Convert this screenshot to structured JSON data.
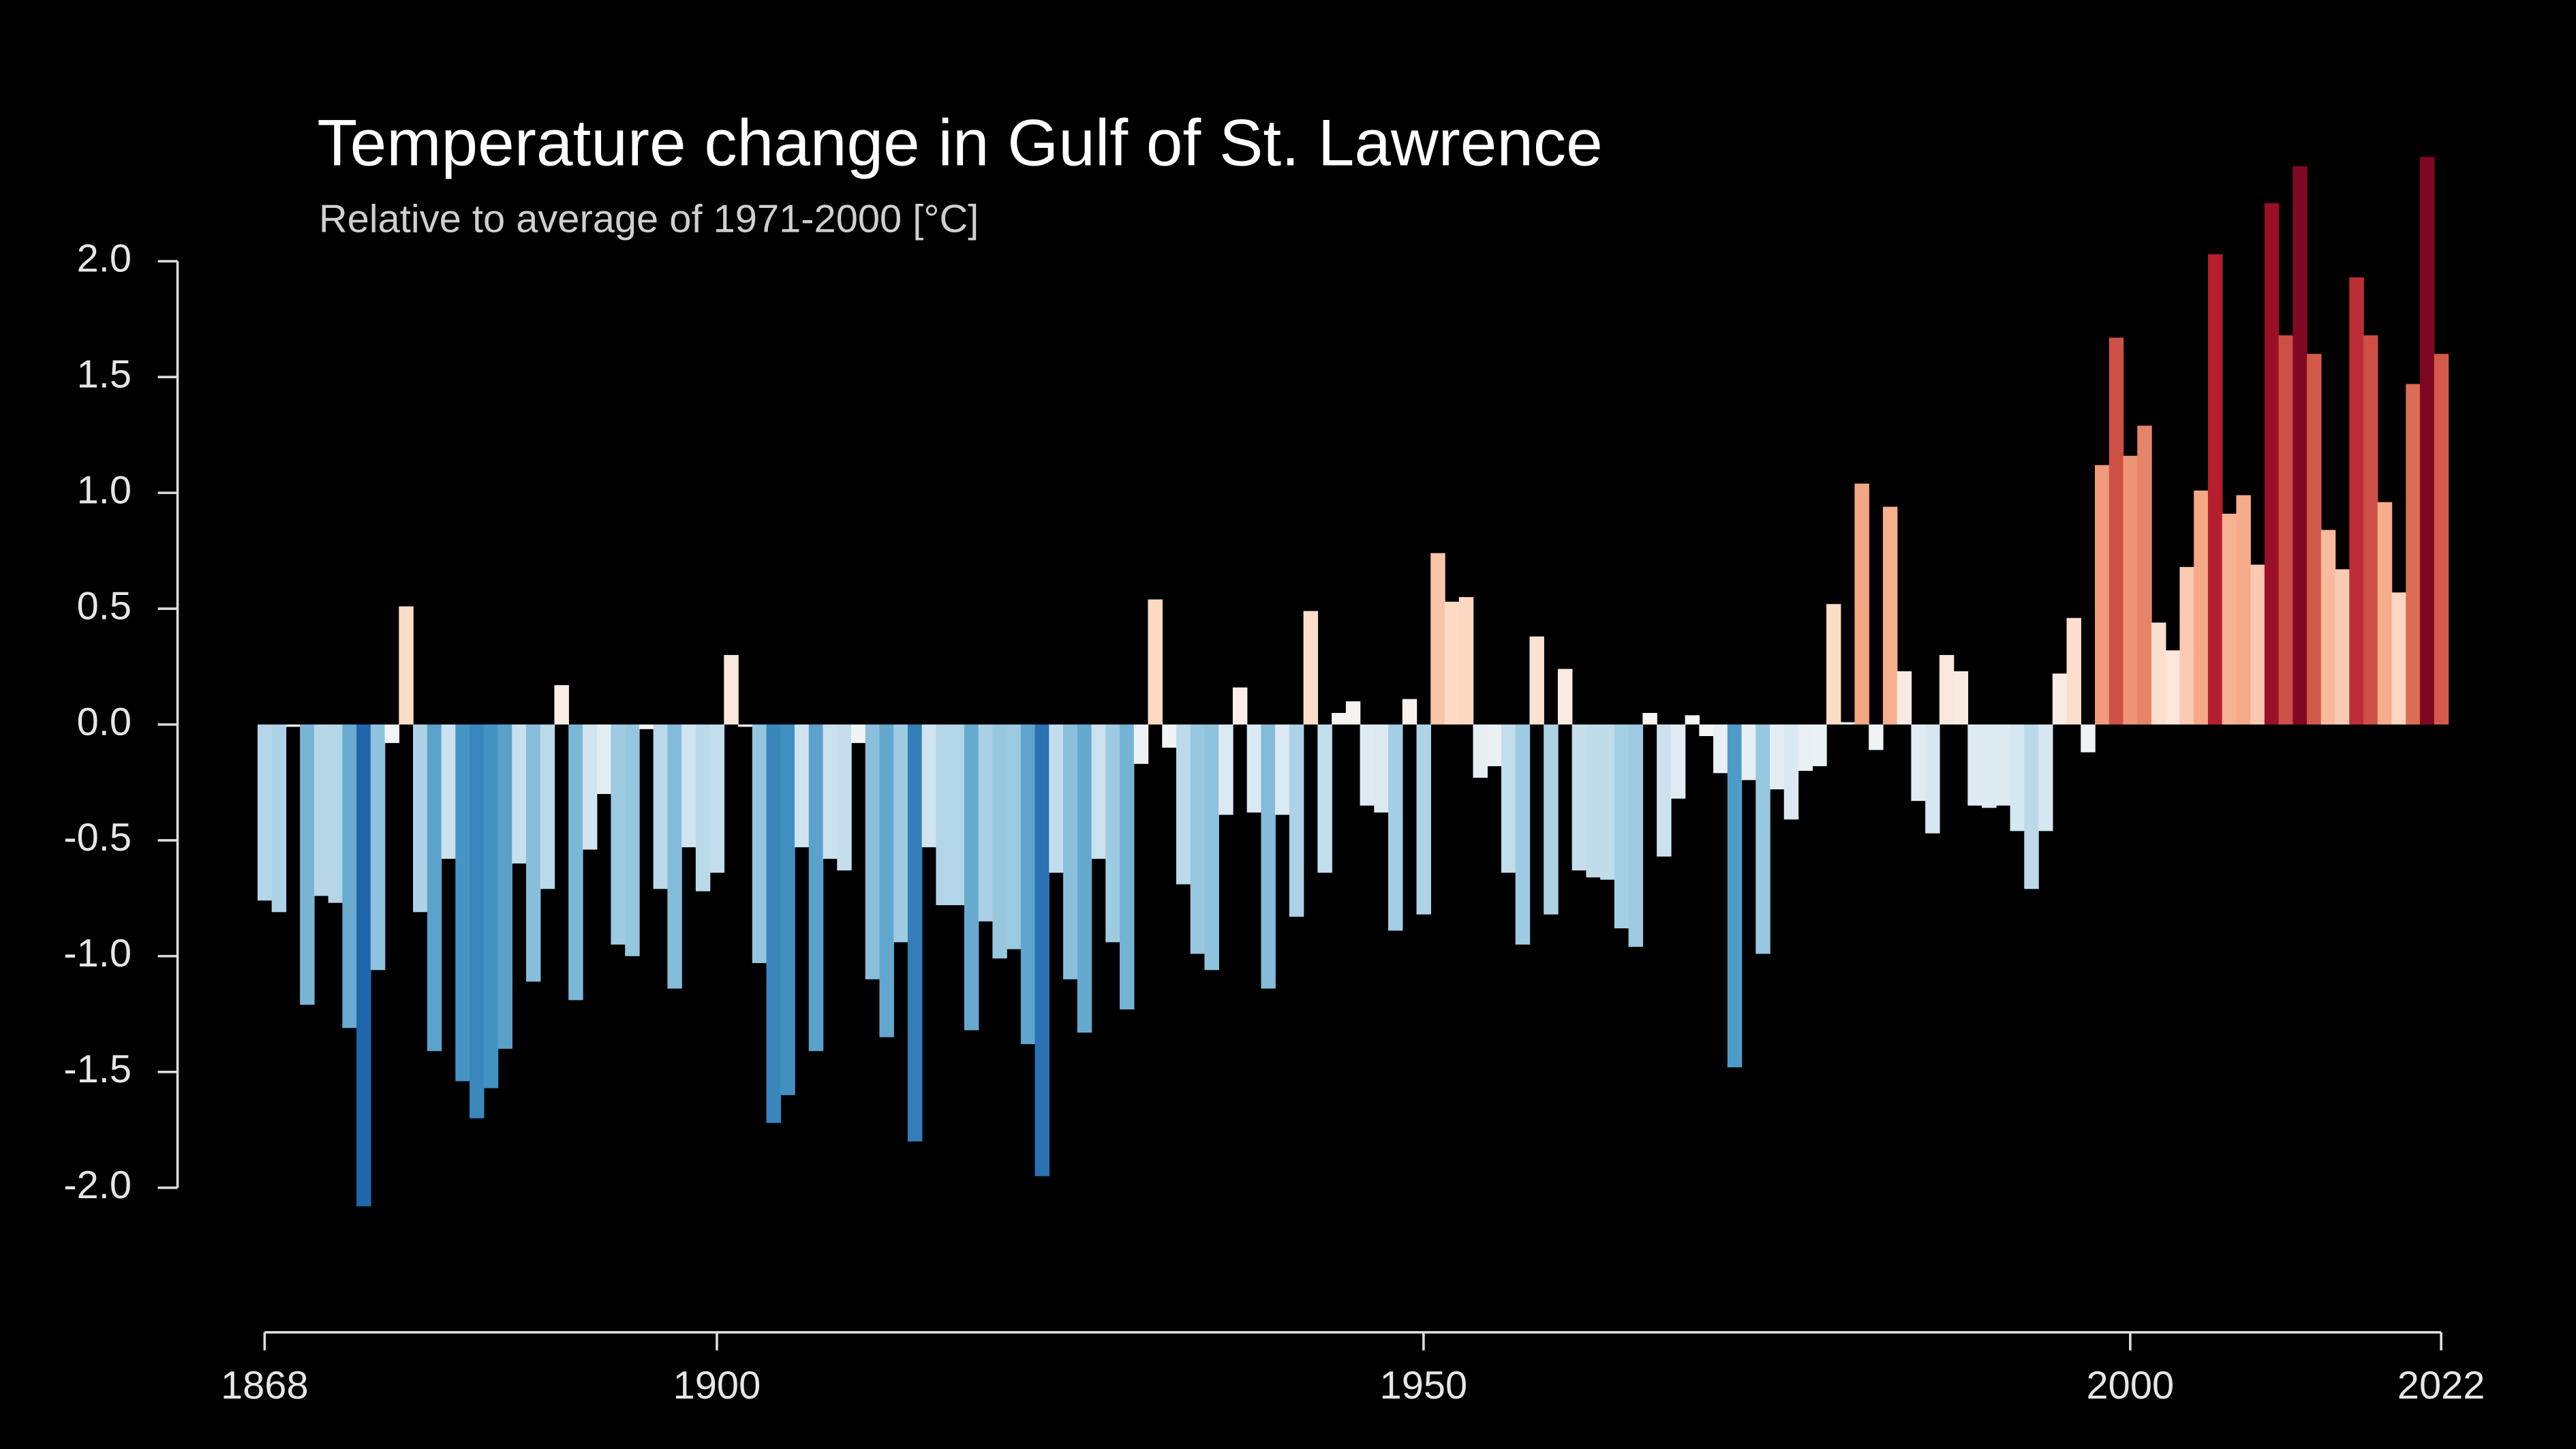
{
  "chart_data": {
    "type": "bar",
    "title": "Temperature change in Gulf of St. Lawrence",
    "subtitle": "Relative to average of 1971-2000  [°C]",
    "x": [
      1868,
      1869,
      1870,
      1871,
      1872,
      1873,
      1874,
      1875,
      1876,
      1877,
      1878,
      1879,
      1880,
      1881,
      1882,
      1883,
      1884,
      1885,
      1886,
      1887,
      1888,
      1889,
      1890,
      1891,
      1892,
      1893,
      1894,
      1895,
      1896,
      1897,
      1898,
      1899,
      1900,
      1901,
      1902,
      1903,
      1904,
      1905,
      1906,
      1907,
      1908,
      1909,
      1910,
      1911,
      1912,
      1913,
      1914,
      1915,
      1916,
      1917,
      1918,
      1919,
      1920,
      1921,
      1922,
      1923,
      1924,
      1925,
      1926,
      1927,
      1928,
      1929,
      1930,
      1931,
      1932,
      1933,
      1934,
      1935,
      1936,
      1937,
      1938,
      1939,
      1940,
      1941,
      1942,
      1943,
      1944,
      1945,
      1946,
      1947,
      1948,
      1949,
      1950,
      1951,
      1952,
      1953,
      1954,
      1955,
      1956,
      1957,
      1958,
      1959,
      1960,
      1961,
      1962,
      1963,
      1964,
      1965,
      1966,
      1967,
      1968,
      1969,
      1970,
      1971,
      1972,
      1973,
      1974,
      1975,
      1976,
      1977,
      1978,
      1979,
      1980,
      1981,
      1982,
      1983,
      1984,
      1985,
      1986,
      1987,
      1988,
      1989,
      1990,
      1991,
      1992,
      1993,
      1994,
      1995,
      1996,
      1997,
      1998,
      1999,
      2000,
      2001,
      2002,
      2003,
      2004,
      2005,
      2006,
      2007,
      2008,
      2009,
      2010,
      2011,
      2012,
      2013,
      2014,
      2015,
      2016,
      2017,
      2018,
      2019,
      2020,
      2021,
      2022
    ],
    "values": [
      -0.76,
      -0.81,
      -0.01,
      -1.21,
      -0.74,
      -0.77,
      -1.31,
      -2.08,
      -1.06,
      -0.08,
      0.51,
      -0.81,
      -1.41,
      -0.58,
      -1.54,
      -1.7,
      -1.57,
      -1.4,
      -0.6,
      -1.11,
      -0.71,
      0.17,
      -1.19,
      -0.54,
      -0.3,
      -0.95,
      -1.0,
      -0.02,
      -0.71,
      -1.14,
      -0.53,
      -0.72,
      -0.64,
      0.3,
      -0.01,
      -1.03,
      -1.72,
      -1.6,
      -0.53,
      -1.41,
      -0.58,
      -0.63,
      -0.08,
      -1.1,
      -1.35,
      -0.94,
      -1.8,
      -0.53,
      -0.78,
      -0.78,
      -1.32,
      -0.85,
      -1.01,
      -0.97,
      -1.38,
      -1.95,
      -0.64,
      -1.1,
      -1.33,
      -0.58,
      -0.94,
      -1.23,
      -0.17,
      0.54,
      -0.1,
      -0.69,
      -0.99,
      -1.06,
      -0.39,
      0.16,
      -0.38,
      -1.14,
      -0.39,
      -0.83,
      0.49,
      -0.64,
      0.05,
      0.1,
      -0.35,
      -0.38,
      -0.89,
      0.11,
      -0.82,
      0.74,
      0.53,
      0.55,
      -0.23,
      -0.18,
      -0.64,
      -0.95,
      0.38,
      -0.82,
      0.24,
      -0.63,
      -0.66,
      -0.67,
      -0.88,
      -0.96,
      0.05,
      -0.57,
      -0.32,
      0.04,
      -0.05,
      -0.21,
      -1.48,
      -0.24,
      -0.99,
      -0.28,
      -0.41,
      -0.2,
      -0.18,
      0.52,
      0.01,
      1.04,
      -0.11,
      0.94,
      0.23,
      -0.33,
      -0.47,
      0.3,
      0.23,
      -0.35,
      -0.36,
      -0.35,
      -0.46,
      -0.71,
      -0.46,
      0.22,
      0.46,
      -0.12,
      1.12,
      1.67,
      1.16,
      1.29,
      0.44,
      0.32,
      0.68,
      1.01,
      2.03,
      0.91,
      0.99,
      0.69,
      2.25,
      1.68,
      2.41,
      1.6,
      0.84,
      0.67,
      1.93,
      1.68,
      0.96,
      0.57,
      1.47,
      2.45,
      1.6
    ],
    "colormap": [
      "#053061",
      "#2166ac",
      "#4393c3",
      "#92c5de",
      "#d1e5f0",
      "#f7f7f7",
      "#fddbc7",
      "#f4a582",
      "#d6604d",
      "#b2182b",
      "#67001f"
    ],
    "clim": [
      -2.6,
      2.6
    ],
    "xlim": [
      1868,
      2022
    ],
    "xticks": [
      1868,
      1900,
      1950,
      2000,
      2022
    ],
    "ylim": [
      -2.5,
      2.5
    ],
    "yticks": [
      {
        "value": -2,
        "label": "-2.0"
      },
      {
        "value": -1.5,
        "label": "-1.5"
      },
      {
        "value": -1,
        "label": "-1.0"
      },
      {
        "value": -0.5,
        "label": "-0.5"
      },
      {
        "value": 0,
        "label": "0.0"
      },
      {
        "value": 0.5,
        "label": "0.5"
      },
      {
        "value": 1,
        "label": "1.0"
      },
      {
        "value": 1.5,
        "label": "1.5"
      },
      {
        "value": 2,
        "label": "2.0"
      }
    ]
  }
}
